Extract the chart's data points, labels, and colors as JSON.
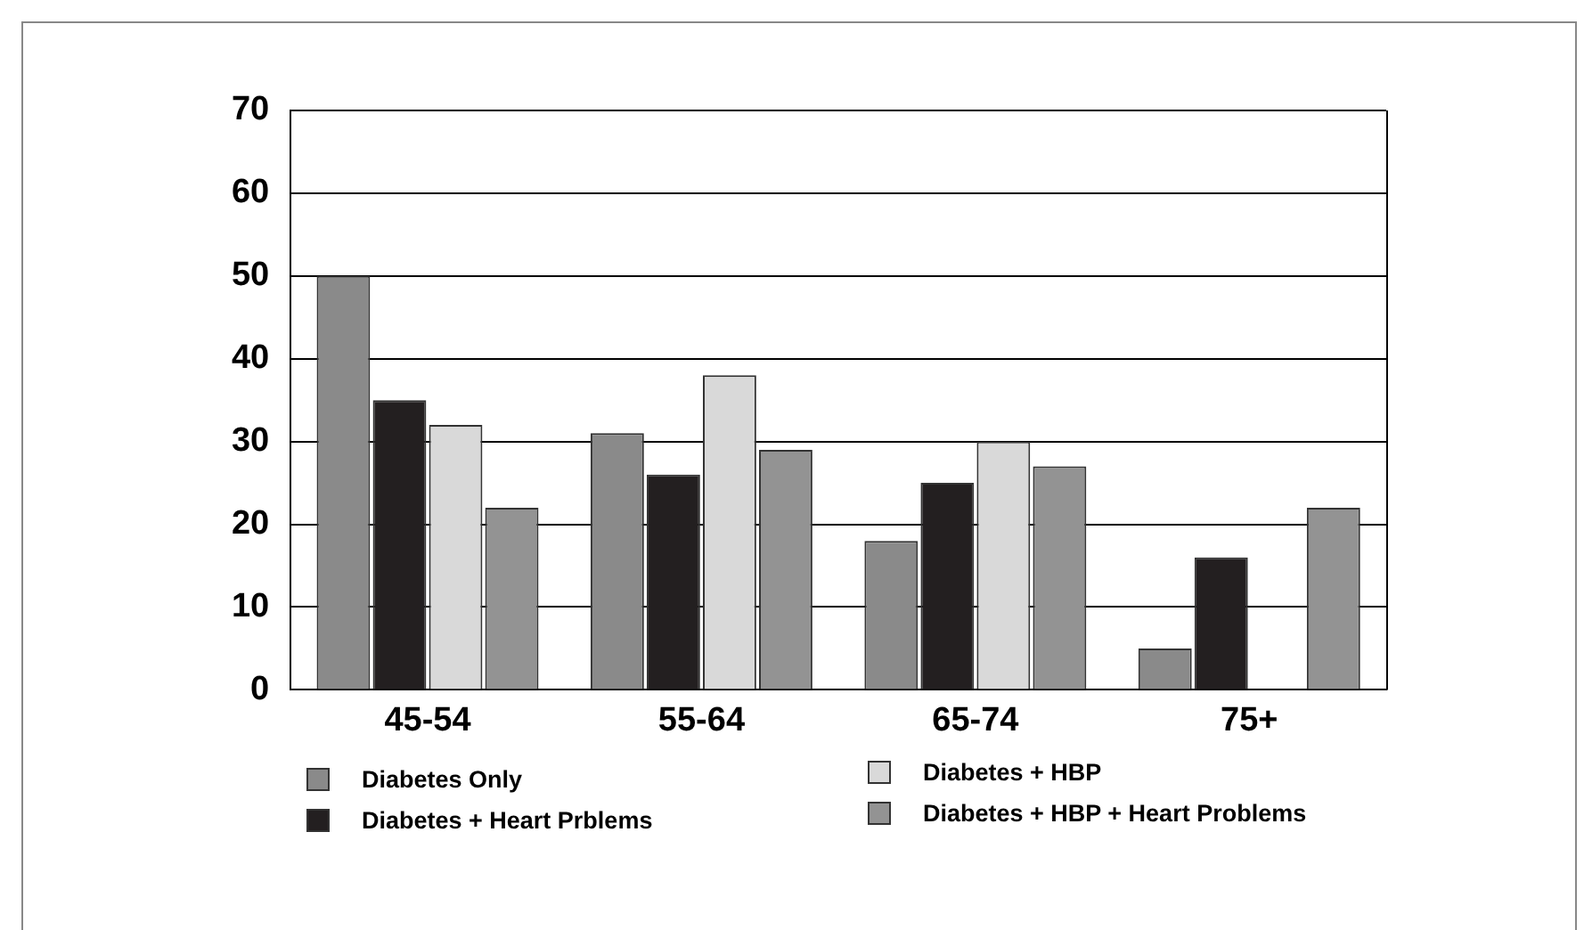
{
  "chart_data": {
    "type": "bar",
    "categories": [
      "45-54",
      "55-64",
      "65-74",
      "75+"
    ],
    "series": [
      {
        "name": "Diabetes Only",
        "color": "#8a8a8a",
        "values": [
          50,
          31,
          18,
          5
        ]
      },
      {
        "name": "Diabetes + Heart Prblems",
        "color": "#231f20",
        "values": [
          35,
          26,
          25,
          16
        ]
      },
      {
        "name": "Diabetes + HBP",
        "color": "#d9d9d9",
        "values": [
          32,
          38,
          30,
          null
        ]
      },
      {
        "name": "Diabetes + HBP + Heart Problems",
        "color": "#939393",
        "values": [
          22,
          29,
          27,
          22
        ]
      }
    ],
    "ylim": [
      0,
      70
    ],
    "yticks": [
      0,
      10,
      20,
      30,
      40,
      50,
      60,
      70
    ],
    "grid": "y",
    "legend": "bottom"
  }
}
